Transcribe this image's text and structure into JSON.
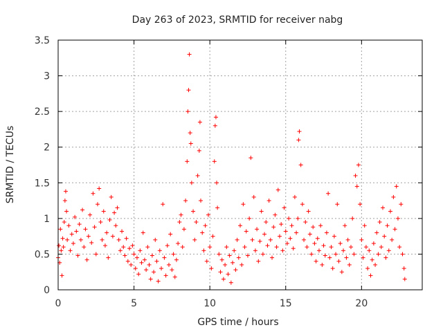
{
  "chart_data": {
    "type": "scatter",
    "title": "Day 263 of 2023, SRMTID for receiver nabg",
    "xlabel": "GPS time / hours",
    "ylabel": "SRMTID / TECUs",
    "xlim": [
      0,
      24
    ],
    "ylim": [
      0,
      3.5
    ],
    "grid": true,
    "marker": "+",
    "marker_color": "#ff0000",
    "xticks": [
      0,
      5,
      10,
      15,
      20
    ],
    "xtick_labels": [
      "0",
      "5",
      "10",
      "15",
      "20"
    ],
    "yticks": [
      0,
      0.5,
      1,
      1.5,
      2,
      2.5,
      3,
      3.5
    ],
    "ytick_labels": [
      "0",
      "0.5",
      "1",
      "1.5",
      "2",
      "2.5",
      "3",
      "3.5"
    ],
    "series": [
      {
        "name": "SRMTID",
        "points": [
          [
            0.0,
            0.45
          ],
          [
            0.05,
            0.62
          ],
          [
            0.1,
            0.38
          ],
          [
            0.15,
            0.85
          ],
          [
            0.2,
            0.55
          ],
          [
            0.25,
            0.2
          ],
          [
            0.3,
            0.72
          ],
          [
            0.35,
            0.6
          ],
          [
            0.4,
            0.95
          ],
          [
            0.45,
            1.25
          ],
          [
            0.5,
            1.38
          ],
          [
            0.55,
            1.1
          ],
          [
            0.6,
            0.7
          ],
          [
            0.7,
            0.9
          ],
          [
            0.8,
            0.55
          ],
          [
            0.9,
            0.78
          ],
          [
            1.0,
            0.65
          ],
          [
            1.1,
            1.02
          ],
          [
            1.2,
            0.82
          ],
          [
            1.3,
            0.48
          ],
          [
            1.4,
            0.92
          ],
          [
            1.5,
            0.7
          ],
          [
            1.6,
            1.12
          ],
          [
            1.7,
            0.6
          ],
          [
            1.8,
            0.85
          ],
          [
            1.9,
            0.42
          ],
          [
            2.0,
            0.75
          ],
          [
            2.1,
            1.05
          ],
          [
            2.2,
            0.66
          ],
          [
            2.3,
            1.35
          ],
          [
            2.4,
            0.88
          ],
          [
            2.5,
            0.5
          ],
          [
            2.6,
            1.2
          ],
          [
            2.7,
            1.42
          ],
          [
            2.8,
            0.95
          ],
          [
            2.9,
            0.7
          ],
          [
            3.0,
            1.1
          ],
          [
            3.1,
            0.62
          ],
          [
            3.2,
            0.8
          ],
          [
            3.3,
            0.45
          ],
          [
            3.4,
            0.98
          ],
          [
            3.5,
            1.3
          ],
          [
            3.6,
            0.75
          ],
          [
            3.7,
            1.08
          ],
          [
            3.8,
            0.9
          ],
          [
            3.9,
            1.15
          ],
          [
            4.0,
            0.7
          ],
          [
            4.1,
            0.55
          ],
          [
            4.2,
            0.82
          ],
          [
            4.3,
            0.6
          ],
          [
            4.4,
            0.48
          ],
          [
            4.5,
            0.72
          ],
          [
            4.6,
            0.4
          ],
          [
            4.7,
            0.58
          ],
          [
            4.8,
            0.35
          ],
          [
            4.9,
            0.62
          ],
          [
            5.0,
            0.5
          ],
          [
            5.1,
            0.3
          ],
          [
            5.2,
            0.45
          ],
          [
            5.3,
            0.22
          ],
          [
            5.4,
            0.55
          ],
          [
            5.5,
            0.38
          ],
          [
            5.6,
            0.8
          ],
          [
            5.7,
            0.42
          ],
          [
            5.8,
            0.28
          ],
          [
            5.9,
            0.6
          ],
          [
            6.0,
            0.35
          ],
          [
            6.1,
            0.15
          ],
          [
            6.2,
            0.48
          ],
          [
            6.3,
            0.25
          ],
          [
            6.4,
            0.7
          ],
          [
            6.5,
            0.4
          ],
          [
            6.6,
            0.12
          ],
          [
            6.7,
            0.55
          ],
          [
            6.8,
            0.3
          ],
          [
            6.9,
            1.2
          ],
          [
            7.0,
            0.45
          ],
          [
            7.1,
            0.2
          ],
          [
            7.2,
            0.62
          ],
          [
            7.3,
            0.35
          ],
          [
            7.4,
            0.78
          ],
          [
            7.5,
            0.28
          ],
          [
            7.6,
            0.5
          ],
          [
            7.7,
            0.18
          ],
          [
            7.8,
            0.42
          ],
          [
            7.9,
            0.65
          ],
          [
            8.0,
            0.95
          ],
          [
            8.1,
            1.05
          ],
          [
            8.2,
            0.6
          ],
          [
            8.3,
            0.85
          ],
          [
            8.4,
            1.25
          ],
          [
            8.5,
            1.8
          ],
          [
            8.55,
            2.5
          ],
          [
            8.6,
            2.8
          ],
          [
            8.65,
            3.3
          ],
          [
            8.7,
            2.2
          ],
          [
            8.75,
            2.05
          ],
          [
            8.8,
            1.5
          ],
          [
            8.9,
            1.1
          ],
          [
            9.0,
            0.7
          ],
          [
            9.1,
            0.95
          ],
          [
            9.2,
            1.6
          ],
          [
            9.3,
            1.95
          ],
          [
            9.35,
            2.35
          ],
          [
            9.4,
            1.25
          ],
          [
            9.5,
            0.8
          ],
          [
            9.6,
            0.55
          ],
          [
            9.7,
            0.9
          ],
          [
            9.8,
            0.4
          ],
          [
            9.9,
            1.05
          ],
          [
            10.0,
            0.6
          ],
          [
            10.1,
            0.3
          ],
          [
            10.2,
            0.75
          ],
          [
            10.3,
            1.8
          ],
          [
            10.35,
            2.3
          ],
          [
            10.4,
            2.42
          ],
          [
            10.45,
            1.5
          ],
          [
            10.5,
            1.15
          ],
          [
            10.6,
            0.5
          ],
          [
            10.7,
            0.25
          ],
          [
            10.8,
            0.42
          ],
          [
            10.9,
            0.15
          ],
          [
            11.0,
            0.35
          ],
          [
            11.1,
            0.6
          ],
          [
            11.2,
            0.22
          ],
          [
            11.3,
            0.48
          ],
          [
            11.4,
            0.1
          ],
          [
            11.5,
            0.38
          ],
          [
            11.6,
            0.55
          ],
          [
            11.7,
            0.28
          ],
          [
            11.8,
            0.7
          ],
          [
            11.9,
            0.45
          ],
          [
            12.0,
            0.9
          ],
          [
            12.1,
            0.35
          ],
          [
            12.2,
            1.2
          ],
          [
            12.3,
            0.6
          ],
          [
            12.4,
            0.82
          ],
          [
            12.5,
            0.48
          ],
          [
            12.6,
            1.0
          ],
          [
            12.7,
            1.85
          ],
          [
            12.8,
            0.7
          ],
          [
            12.9,
            1.3
          ],
          [
            13.0,
            0.55
          ],
          [
            13.1,
            0.85
          ],
          [
            13.2,
            0.4
          ],
          [
            13.3,
            0.68
          ],
          [
            13.4,
            1.1
          ],
          [
            13.5,
            0.5
          ],
          [
            13.6,
            0.78
          ],
          [
            13.7,
            0.95
          ],
          [
            13.8,
            0.62
          ],
          [
            13.9,
            1.25
          ],
          [
            14.0,
            0.7
          ],
          [
            14.1,
            0.45
          ],
          [
            14.2,
            0.88
          ],
          [
            14.3,
            1.05
          ],
          [
            14.4,
            0.6
          ],
          [
            14.5,
            1.4
          ],
          [
            14.6,
            0.75
          ],
          [
            14.7,
            0.92
          ],
          [
            14.8,
            0.55
          ],
          [
            14.9,
            1.15
          ],
          [
            15.0,
            0.82
          ],
          [
            15.1,
            0.65
          ],
          [
            15.2,
            1.0
          ],
          [
            15.3,
            0.72
          ],
          [
            15.4,
            0.9
          ],
          [
            15.5,
            0.58
          ],
          [
            15.6,
            1.3
          ],
          [
            15.7,
            0.8
          ],
          [
            15.8,
            1.0
          ],
          [
            15.85,
            2.1
          ],
          [
            15.9,
            2.22
          ],
          [
            16.0,
            1.75
          ],
          [
            16.1,
            1.2
          ],
          [
            16.2,
            0.7
          ],
          [
            16.3,
            0.95
          ],
          [
            16.4,
            0.6
          ],
          [
            16.5,
            1.1
          ],
          [
            16.6,
            0.78
          ],
          [
            16.7,
            0.5
          ],
          [
            16.8,
            0.88
          ],
          [
            16.9,
            0.65
          ],
          [
            17.0,
            0.4
          ],
          [
            17.1,
            0.72
          ],
          [
            17.2,
            0.55
          ],
          [
            17.3,
            0.9
          ],
          [
            17.4,
            0.35
          ],
          [
            17.5,
            0.62
          ],
          [
            17.6,
            0.48
          ],
          [
            17.7,
            0.8
          ],
          [
            17.8,
            1.35
          ],
          [
            17.9,
            0.45
          ],
          [
            18.0,
            0.6
          ],
          [
            18.1,
            0.3
          ],
          [
            18.2,
            0.75
          ],
          [
            18.3,
            0.5
          ],
          [
            18.4,
            1.2
          ],
          [
            18.5,
            0.4
          ],
          [
            18.6,
            0.65
          ],
          [
            18.7,
            0.25
          ],
          [
            18.8,
            0.55
          ],
          [
            18.9,
            0.9
          ],
          [
            19.0,
            0.45
          ],
          [
            19.1,
            0.7
          ],
          [
            19.2,
            0.35
          ],
          [
            19.3,
            0.6
          ],
          [
            19.4,
            1.0
          ],
          [
            19.5,
            0.5
          ],
          [
            19.6,
            1.6
          ],
          [
            19.7,
            1.45
          ],
          [
            19.8,
            1.75
          ],
          [
            19.9,
            1.2
          ],
          [
            20.0,
            0.7
          ],
          [
            20.1,
            0.45
          ],
          [
            20.2,
            0.9
          ],
          [
            20.3,
            0.6
          ],
          [
            20.4,
            0.3
          ],
          [
            20.5,
            0.55
          ],
          [
            20.6,
            0.2
          ],
          [
            20.7,
            0.42
          ],
          [
            20.8,
            0.65
          ],
          [
            20.9,
            0.35
          ],
          [
            21.0,
            0.8
          ],
          [
            21.1,
            0.5
          ],
          [
            21.2,
            0.95
          ],
          [
            21.3,
            0.6
          ],
          [
            21.4,
            1.15
          ],
          [
            21.5,
            0.75
          ],
          [
            21.6,
            0.45
          ],
          [
            21.7,
            0.9
          ],
          [
            21.8,
            0.55
          ],
          [
            21.9,
            1.1
          ],
          [
            22.0,
            0.7
          ],
          [
            22.1,
            1.3
          ],
          [
            22.2,
            0.85
          ],
          [
            22.3,
            1.45
          ],
          [
            22.4,
            1.0
          ],
          [
            22.5,
            0.6
          ],
          [
            22.6,
            1.2
          ],
          [
            22.7,
            0.5
          ],
          [
            22.8,
            0.3
          ],
          [
            22.85,
            0.15
          ]
        ]
      }
    ]
  }
}
